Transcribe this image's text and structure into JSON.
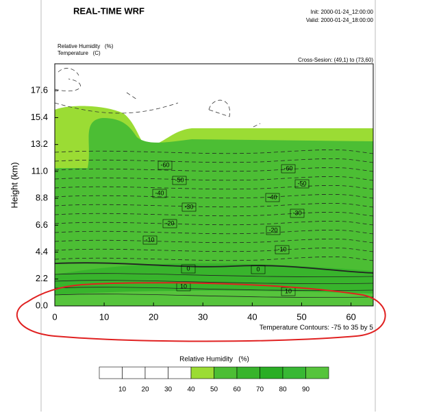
{
  "chart_data": {
    "type": "contour",
    "title": "REAL-TIME WRF",
    "init": "Init: 2000-01-24_12:00:00",
    "valid": "Valid: 2000-01-24_18:00:00",
    "fields": [
      "Relative Humidity   (%)",
      "Temperature   (C)"
    ],
    "cross_section": "Cross-Sesion: (49,1) to (73,60)",
    "y_label": "Height (km)",
    "contour_note": "Temperature Contours: -75 to 35 by 5",
    "xlim": [
      0,
      64.5
    ],
    "ylim": [
      0,
      19.8
    ],
    "xticks": [
      0,
      10,
      20,
      30,
      40,
      50,
      60
    ],
    "yticks": [
      {
        "value": 0,
        "label": "0.0"
      },
      2.2,
      4.4,
      6.6,
      8.8,
      {
        "value": 11,
        "label": "11.0"
      },
      13.2,
      15.4,
      17.6
    ],
    "contour_labels": [
      -60,
      -50,
      -40,
      -30,
      -20,
      -10,
      0,
      10,
      -60,
      -50,
      -40,
      -30,
      -20,
      -10,
      0,
      10
    ],
    "colorbar": {
      "title": "Relative Humidity   (%)",
      "levels": [
        10,
        20,
        30,
        40,
        50,
        60,
        70,
        80,
        90
      ],
      "colors": [
        "#ffffff",
        "#ffffff",
        "#ffffff",
        "#ffffff",
        "#9bdc34",
        "#4cbe34",
        "#38b42c",
        "#2aae24",
        "#38b834",
        "#56c43c"
      ]
    }
  }
}
